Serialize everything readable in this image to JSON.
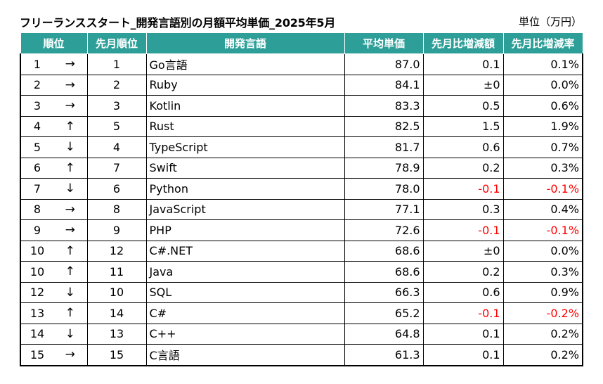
{
  "title": "フリーランススタート_開発言語別の月額平均単価_2025年5月",
  "unit": "単位（万円）",
  "colors": {
    "header_bg": "#2e9f98",
    "header_text": "#ffffff",
    "negative": "#ff0000"
  },
  "columns": {
    "rank": "順位",
    "prev_rank": "先月順位",
    "language": "開発言語",
    "avg": "平均単価",
    "diff": "先月比増減額",
    "rate": "先月比増減率"
  },
  "rows": [
    {
      "rank": "1",
      "arrow": "→",
      "prev": "1",
      "lang": "Go言語",
      "avg": "87.0",
      "diff": "0.1",
      "rate": "0.1%",
      "neg": false
    },
    {
      "rank": "2",
      "arrow": "→",
      "prev": "2",
      "lang": "Ruby",
      "avg": "84.1",
      "diff": "±0",
      "rate": "0.0%",
      "neg": false
    },
    {
      "rank": "3",
      "arrow": "→",
      "prev": "3",
      "lang": "Kotlin",
      "avg": "83.3",
      "diff": "0.5",
      "rate": "0.6%",
      "neg": false
    },
    {
      "rank": "4",
      "arrow": "↑",
      "prev": "5",
      "lang": "Rust",
      "avg": "82.5",
      "diff": "1.5",
      "rate": "1.9%",
      "neg": false
    },
    {
      "rank": "5",
      "arrow": "↓",
      "prev": "4",
      "lang": "TypeScript",
      "avg": "81.7",
      "diff": "0.6",
      "rate": "0.7%",
      "neg": false
    },
    {
      "rank": "6",
      "arrow": "↑",
      "prev": "7",
      "lang": "Swift",
      "avg": "78.9",
      "diff": "0.2",
      "rate": "0.3%",
      "neg": false
    },
    {
      "rank": "7",
      "arrow": "↓",
      "prev": "6",
      "lang": "Python",
      "avg": "78.0",
      "diff": "-0.1",
      "rate": "-0.1%",
      "neg": true
    },
    {
      "rank": "8",
      "arrow": "→",
      "prev": "8",
      "lang": "JavaScript",
      "avg": "77.1",
      "diff": "0.3",
      "rate": "0.4%",
      "neg": false
    },
    {
      "rank": "9",
      "arrow": "→",
      "prev": "9",
      "lang": "PHP",
      "avg": "72.6",
      "diff": "-0.1",
      "rate": "-0.1%",
      "neg": true
    },
    {
      "rank": "10",
      "arrow": "↑",
      "prev": "12",
      "lang": "C#.NET",
      "avg": "68.6",
      "diff": "±0",
      "rate": "0.0%",
      "neg": false
    },
    {
      "rank": "10",
      "arrow": "↑",
      "prev": "11",
      "lang": "Java",
      "avg": "68.6",
      "diff": "0.2",
      "rate": "0.3%",
      "neg": false
    },
    {
      "rank": "12",
      "arrow": "↓",
      "prev": "10",
      "lang": "SQL",
      "avg": "66.3",
      "diff": "0.6",
      "rate": "0.9%",
      "neg": false
    },
    {
      "rank": "13",
      "arrow": "↑",
      "prev": "14",
      "lang": "C#",
      "avg": "65.2",
      "diff": "-0.1",
      "rate": "-0.2%",
      "neg": true
    },
    {
      "rank": "14",
      "arrow": "↓",
      "prev": "13",
      "lang": "C++",
      "avg": "64.8",
      "diff": "0.1",
      "rate": "0.2%",
      "neg": false
    },
    {
      "rank": "15",
      "arrow": "→",
      "prev": "15",
      "lang": "C言語",
      "avg": "61.3",
      "diff": "0.1",
      "rate": "0.2%",
      "neg": false
    }
  ]
}
